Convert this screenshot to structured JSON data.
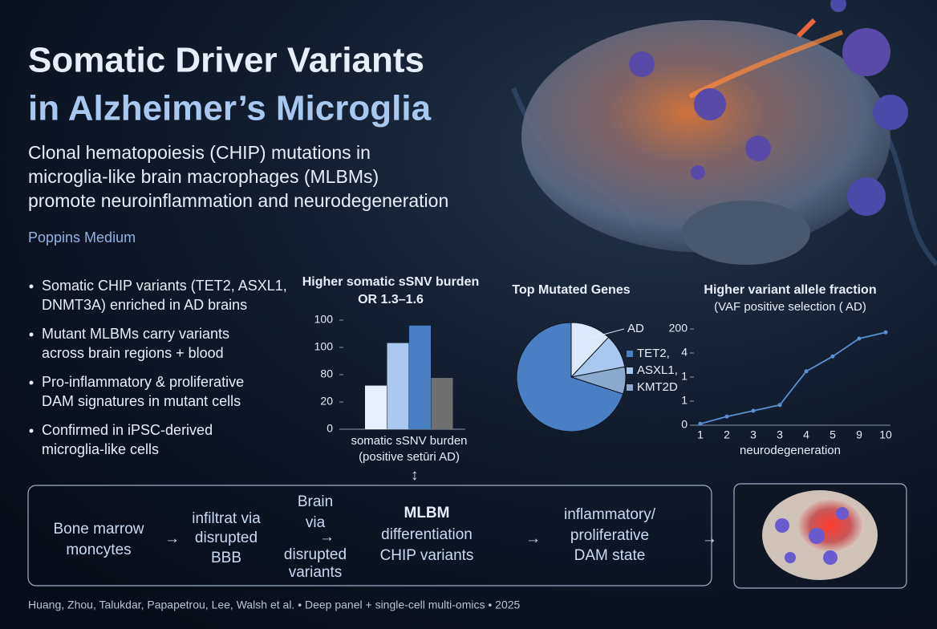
{
  "header": {
    "title_lines": [
      "Somatic Driver Variants",
      "in Alzheimer’s Microglia"
    ],
    "subtitle_lines": [
      "Clonal hematopoiesis (CHIP) mutations in",
      "microglia-like brain macrophages (MLBMs)",
      "promote neuroinflammation and neurodegeneration"
    ],
    "font_note": "Poppins Medium"
  },
  "bullets": [
    [
      "Somatic CHIP variants (TET2, ASXL1,",
      "DNMT3A) enriched in AD brains"
    ],
    [
      "Mutant MLBMs carry variants",
      "across brain regions + blood"
    ],
    [
      "Pro-inflammatory & proliferative",
      "DAM signatures in mutant cells"
    ],
    [
      "Confirmed in iPSC-derived",
      "microglia-like cells"
    ]
  ],
  "chart_data": [
    {
      "type": "bar",
      "title": "Higher somatic sSNV burden",
      "subtitle": "OR 1.3–1.6",
      "x_label_lines": [
        "somatic sSNV burden",
        "(positive setūri AD)"
      ],
      "categories": [
        null,
        null,
        null,
        null
      ],
      "values": [
        40,
        79,
        95,
        47
      ],
      "colors": [
        "#e6effb",
        "#a9c8f0",
        "#4a7fc4",
        "#6f6f6f"
      ],
      "ylim": [
        0,
        100
      ],
      "yticks": [
        0,
        {
          "value": 25,
          "label": "20"
        },
        {
          "value": 50,
          "label": "80"
        },
        {
          "value": 75,
          "label": "100"
        },
        100
      ]
    },
    {
      "type": "pie",
      "title": "Top Mutated Genes",
      "categories": [
        "AD",
        "ASXL1,",
        "KMT2D",
        "TET2,"
      ],
      "values": [
        12,
        10,
        8,
        70
      ],
      "colors": [
        "#dce9fa",
        "#a9c8ef",
        "#8aa9cf",
        "#4a7fc4"
      ]
    },
    {
      "type": "line",
      "title": "Higher variant allele fraction",
      "subtitle": "(VAF positive selection ( AD)",
      "x_label": "neurodegeneration",
      "categories": [
        "1",
        "2",
        "3",
        "3",
        "4",
        "5",
        "9",
        "10"
      ],
      "values": [
        3,
        18,
        30,
        42,
        112,
        143,
        180,
        193
      ],
      "color": "#5b8fd0",
      "ylim": [
        0,
        200
      ],
      "yticks": [
        0,
        {
          "value": 50,
          "label": "1"
        },
        {
          "value": 100,
          "label": "1"
        },
        {
          "value": 150,
          "label": "4"
        },
        200
      ]
    }
  ],
  "flow": {
    "steps": [
      [
        "Bone marrow",
        "moncytes"
      ],
      [
        "infiltrat via",
        "disrupted",
        "BBB"
      ],
      [
        "Brain",
        "via",
        "disrupted",
        "variants"
      ],
      [
        "MLBM",
        "differentiation",
        "CHIP variants"
      ],
      [
        "inflammatory/",
        "proliferative",
        "DAM state"
      ]
    ]
  },
  "citation": "Huang, Zhou, Talukdar, Papapetrou, Lee, Walsh et al. • Deep panel + single-cell multi-omics • 2025"
}
